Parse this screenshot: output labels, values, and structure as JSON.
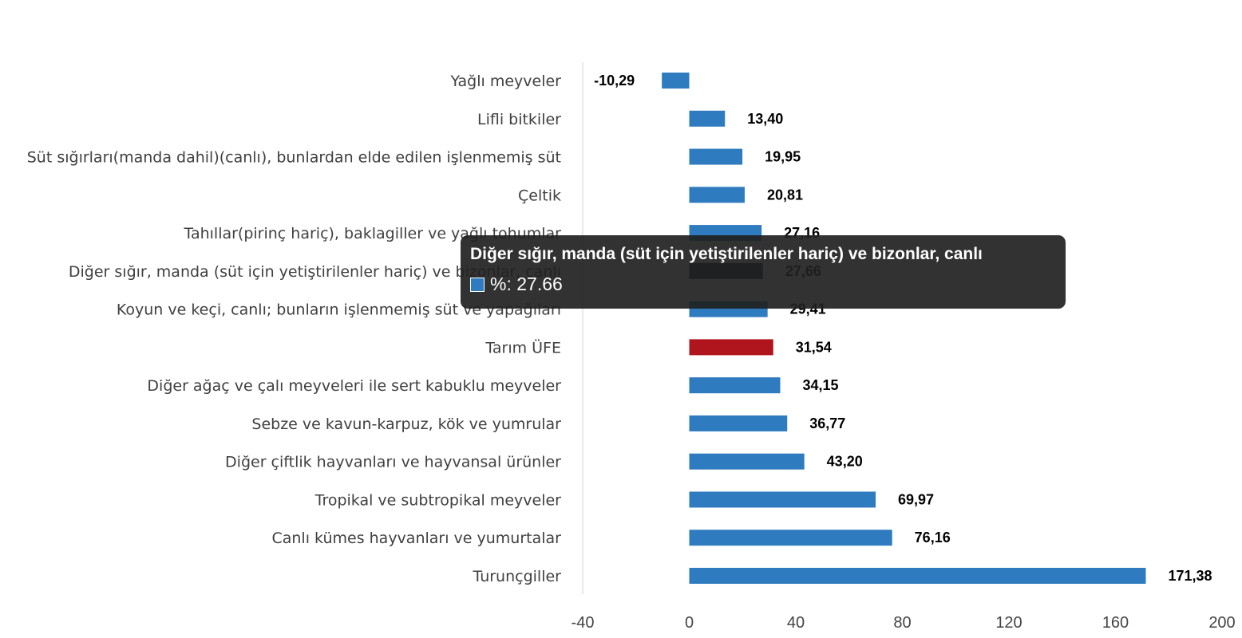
{
  "chart_data": {
    "type": "bar",
    "orientation": "horizontal",
    "categories": [
      "Yağlı meyveler",
      "Lifli bitkiler",
      "Süt sığırları(manda dahil)(canlı), bunlardan elde edilen işlenmemiş süt",
      "Çeltik",
      "Tahıllar(pirinç hariç), baklagiller ve yağlı tohumlar",
      "Diğer sığır, manda (süt için yetiştirilenler hariç) ve bizonlar, canlı",
      "Koyun ve keçi, canlı; bunların işlenmemiş süt ve yapağıları",
      "Tarım ÜFE",
      "Diğer ağaç ve çalı meyveleri ile sert kabuklu meyveler",
      "Sebze ve kavun-karpuz, kök ve yumrular",
      "Diğer çiftlik hayvanları ve hayvansal ürünler",
      "Tropikal ve subtropikal meyveler",
      "Canlı kümes hayvanları ve yumurtalar",
      "Turunçgiller"
    ],
    "values": [
      -10.29,
      13.4,
      19.95,
      20.81,
      27.16,
      27.66,
      29.41,
      31.54,
      34.15,
      36.77,
      43.2,
      69.97,
      76.16,
      171.38
    ],
    "value_labels": [
      "-10,29",
      "13,40",
      "19,95",
      "20,81",
      "27,16",
      "27,66",
      "29,41",
      "31,54",
      "34,15",
      "36,77",
      "43,20",
      "69,97",
      "76,16",
      "171,38"
    ],
    "highlight_index": 7,
    "hover_index": 5,
    "colors": {
      "bar": "#2e7bbf",
      "highlight": "#b0151d",
      "hovered": "#0b2038"
    },
    "xlim": [
      -40,
      200
    ],
    "xticks": [
      -40,
      0,
      40,
      80,
      120,
      160,
      200
    ],
    "xtick_labels": [
      "-40",
      "0",
      "40",
      "80",
      "120",
      "160",
      "200"
    ],
    "grid": false,
    "legend": "none",
    "title": "",
    "xlabel": "",
    "ylabel": ""
  },
  "tooltip": {
    "title": "Diğer sığır, manda (süt için yetiştirilenler hariç) ve bizonlar, canlı",
    "value_text": "%: 27.66",
    "swatch_color": "#2e7bbf"
  }
}
